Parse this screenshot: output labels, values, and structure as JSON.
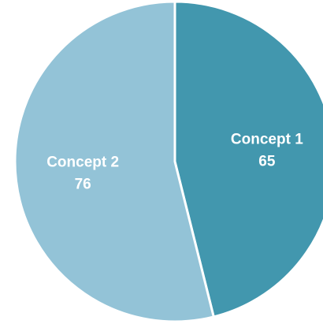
{
  "chart_data": {
    "type": "pie",
    "title": "",
    "categories": [
      "Concept 1",
      "Concept 2"
    ],
    "values": [
      65,
      76
    ],
    "colors": [
      "#4297AE",
      "#93C3D7"
    ],
    "separator_color": "#FFFFFF",
    "start_angle": "12 o'clock",
    "direction": "clockwise",
    "legend": "none",
    "data_labels": "category name and value inside slice"
  }
}
